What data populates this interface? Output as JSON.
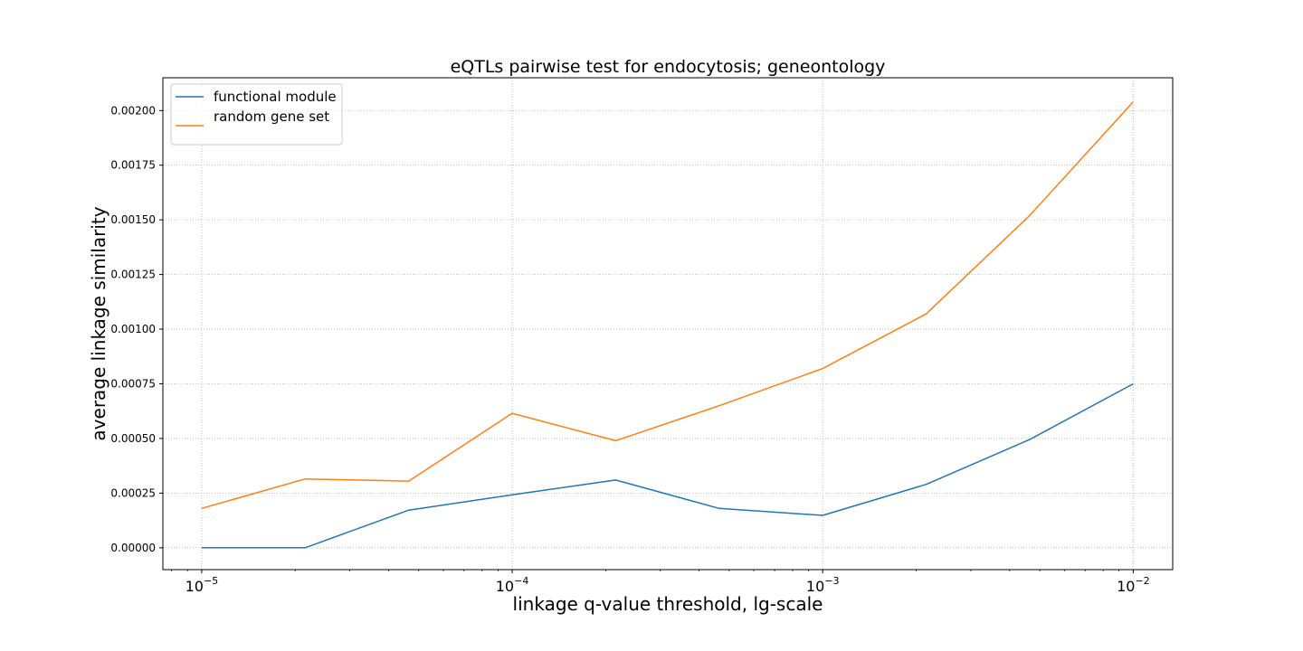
{
  "chart_data": {
    "type": "line",
    "title": "eQTLs pairwise test for endocytosis; geneontology",
    "xlabel": "linkage q-value threshold, lg-scale",
    "ylabel": "average linkage similarity",
    "xscale": "log",
    "xlim": [
      7.5e-06,
      0.0134
    ],
    "ylim": [
      -0.0001,
      0.00215
    ],
    "x": [
      1e-05,
      2.154e-05,
      4.642e-05,
      0.0001,
      0.0002154,
      0.0004642,
      0.001,
      0.002154,
      0.004642,
      0.01
    ],
    "xticks": [
      1e-05,
      0.0001,
      0.001,
      0.01
    ],
    "xtick_labels": [
      {
        "base": "10",
        "exp": "−5"
      },
      {
        "base": "10",
        "exp": "−4"
      },
      {
        "base": "10",
        "exp": "−3"
      },
      {
        "base": "10",
        "exp": "−2"
      }
    ],
    "yticks": [
      0,
      0.00025,
      0.0005,
      0.00075,
      0.001,
      0.00125,
      0.0015,
      0.00175,
      0.002
    ],
    "ytick_labels": [
      "0.00000",
      "0.00025",
      "0.00050",
      "0.00075",
      "0.00100",
      "0.00125",
      "0.00150",
      "0.00175",
      "0.00200"
    ],
    "grid": true,
    "legend_position": "top-left",
    "series": [
      {
        "name": "functional module",
        "color": "#1f77b4",
        "values": [
          0.0,
          0.0,
          0.000172,
          0.000242,
          0.00031,
          0.00018,
          0.000148,
          0.00029,
          0.000495,
          0.00075
        ]
      },
      {
        "name": "random gene set",
        "color": "#ff7f0e",
        "values": [
          0.00018,
          0.000315,
          0.000305,
          0.000615,
          0.00049,
          0.00065,
          0.00082,
          0.00107,
          0.00152,
          0.00204
        ]
      }
    ]
  }
}
